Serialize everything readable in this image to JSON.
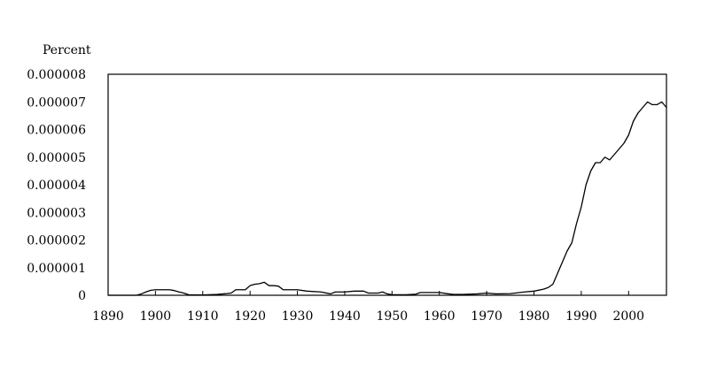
{
  "chart_data": {
    "type": "line",
    "ylabel": "Percent",
    "xlabel": "",
    "title": "",
    "xlim": [
      1890,
      2008
    ],
    "ylim": [
      0,
      8e-06
    ],
    "x_ticks": [
      "1890",
      "1900",
      "1910",
      "1920",
      "1930",
      "1940",
      "1950",
      "1960",
      "1970",
      "1980",
      "1990",
      "2000"
    ],
    "x_tick_values": [
      1890,
      1900,
      1910,
      1920,
      1930,
      1940,
      1950,
      1960,
      1970,
      1980,
      1990,
      2000
    ],
    "y_ticks": [
      "0",
      "0.000001",
      "0.000002",
      "0.000003",
      "0.000004",
      "0.000005",
      "0.000006",
      "0.000007",
      "0.000008"
    ],
    "y_tick_values": [
      0,
      1e-06,
      2e-06,
      3e-06,
      4e-06,
      5e-06,
      6e-06,
      7e-06,
      8e-06
    ],
    "grid": false,
    "line_color": "#000000",
    "series": [
      {
        "x": [
          1890,
          1893,
          1896,
          1897,
          1898,
          1899,
          1900,
          1901,
          1902,
          1903,
          1904,
          1905,
          1906,
          1907,
          1910,
          1913,
          1915,
          1916,
          1917,
          1918,
          1919,
          1920,
          1921,
          1922,
          1923,
          1924,
          1925,
          1926,
          1927,
          1928,
          1929,
          1930,
          1932,
          1935,
          1937,
          1938,
          1940,
          1942,
          1944,
          1945,
          1946,
          1947,
          1948,
          1949,
          1950,
          1953,
          1955,
          1956,
          1958,
          1960,
          1962,
          1963,
          1965,
          1968,
          1970,
          1972,
          1975,
          1978,
          1980,
          1982,
          1983,
          1984,
          1985,
          1986,
          1987,
          1988,
          1989,
          1990,
          1991,
          1992,
          1993,
          1994,
          1995,
          1996,
          1997,
          1998,
          1999,
          2000,
          2001,
          2002,
          2003,
          2004,
          2005,
          2006,
          2007,
          2008
        ],
        "y": [
          0,
          0,
          0,
          5e-08,
          1.2e-07,
          1.8e-07,
          2e-07,
          2e-07,
          2e-07,
          2e-07,
          1.7e-07,
          1.2e-07,
          8e-08,
          2e-08,
          1e-08,
          3e-08,
          6e-08,
          8e-08,
          2e-07,
          2e-07,
          2e-07,
          3.5e-07,
          4e-07,
          4.2e-07,
          4.7e-07,
          3.5e-07,
          3.5e-07,
          3.3e-07,
          2e-07,
          2e-07,
          2e-07,
          2e-07,
          1.5e-07,
          1.2e-07,
          5e-08,
          1.2e-07,
          1.2e-07,
          1.5e-07,
          1.5e-07,
          8e-08,
          8e-08,
          8e-08,
          1.2e-07,
          5e-08,
          2e-08,
          2e-08,
          4e-08,
          1e-07,
          1e-07,
          1e-07,
          5e-08,
          3e-08,
          3e-08,
          5e-08,
          8e-08,
          5e-08,
          6e-08,
          1.2e-07,
          1.5e-07,
          2.2e-07,
          2.8e-07,
          4e-07,
          8e-07,
          1.2e-06,
          1.6e-06,
          1.9e-06,
          2.6e-06,
          3.2e-06,
          4e-06,
          4.5e-06,
          4.8e-06,
          4.8e-06,
          5e-06,
          4.9e-06,
          5.1e-06,
          5.3e-06,
          5.5e-06,
          5.8e-06,
          6.3e-06,
          6.6e-06,
          6.8e-06,
          7e-06,
          6.9e-06,
          6.9e-06,
          7e-06,
          6.8e-06
        ]
      }
    ]
  }
}
